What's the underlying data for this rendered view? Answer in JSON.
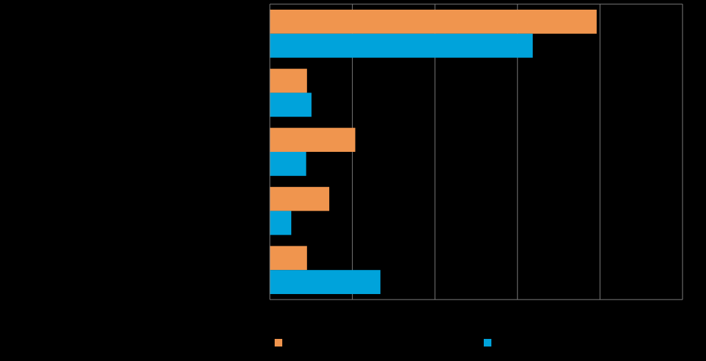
{
  "colors": {
    "background": "#000000",
    "series_a": "#F0954E",
    "series_b": "#00A3DB",
    "gridline": "#7F7F7F",
    "axis": "#7F7F7F"
  },
  "chart_data": {
    "type": "bar",
    "orientation": "horizontal",
    "title": "",
    "xlabel": "",
    "ylabel": "",
    "categories": [
      "",
      "",
      "",
      "",
      ""
    ],
    "series": [
      {
        "color": "#F0954E",
        "values": [
          79.2,
          9.0,
          20.7,
          14.4,
          9.0
        ]
      },
      {
        "color": "#00A3DB",
        "values": [
          63.7,
          10.1,
          8.8,
          5.2,
          26.8
        ]
      }
    ],
    "xlim": [
      0,
      100
    ],
    "gridlines": [
      0,
      20,
      40,
      60,
      80,
      100
    ],
    "grid": true,
    "legend": {
      "position": "bottom",
      "entries": [
        "",
        ""
      ]
    }
  }
}
